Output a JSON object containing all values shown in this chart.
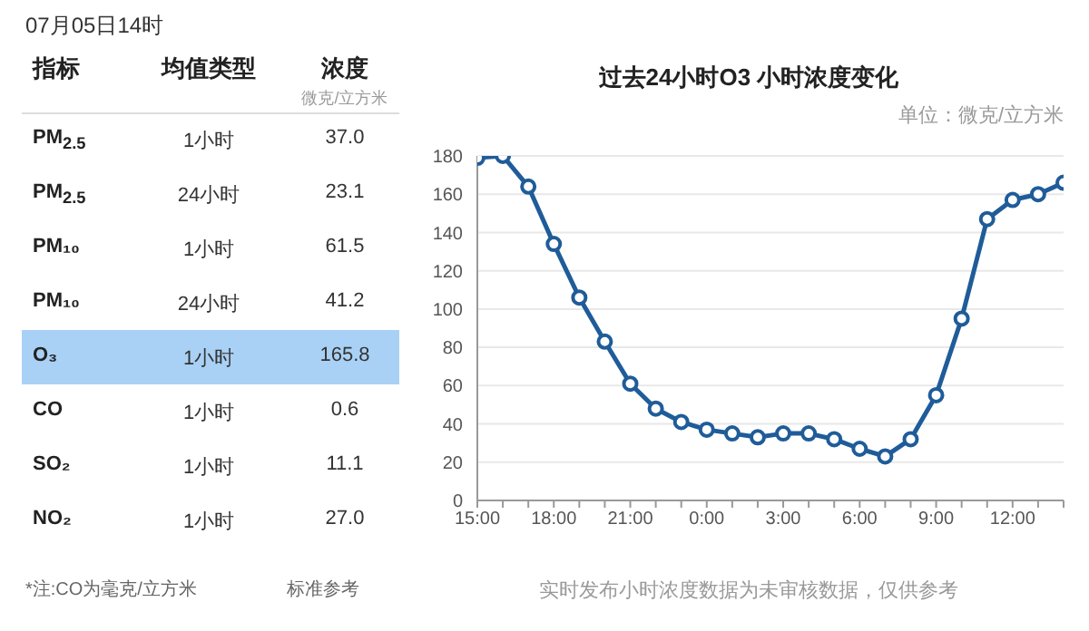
{
  "chart_data": [
    {
      "type": "other",
      "title": "07月05日14时",
      "categories": [
        "PM$_{2.5}$",
        "PM$_{2.5}$",
        "PM₁₀",
        "PM₁₀",
        "O₃",
        "CO",
        "SO₂",
        "NO₂"
      ],
      "y2_categories": [
        "1小时",
        "24小时",
        "1小时",
        "24小时",
        "1小时",
        "1小时",
        "1小时",
        "1小时"
      ],
      "value_labels": [
        "37.0",
        "23.1",
        "61.5",
        "41.2",
        "165.8",
        "0.6",
        "11.1",
        "27.0"
      ],
      "colors": [
        null,
        null,
        null,
        null,
        "#a9d1f5",
        null,
        null,
        null
      ],
      "annotations": [
        "指标",
        "均值类型",
        "浓度",
        "微克/立方米",
        "*注:CO为毫克/立方米",
        "标准参考"
      ]
    },
    {
      "type": "line",
      "title": "过去24小时O3 小时浓度变化",
      "ylabel": "单位：微克/立方米",
      "categories": [
        "15:00",
        null,
        null,
        "18:00",
        null,
        null,
        "21:00",
        null,
        null,
        "0:00",
        null,
        null,
        "3:00",
        null,
        null,
        "6:00",
        null,
        null,
        "9:00",
        null,
        null,
        "12:00",
        null,
        null
      ],
      "values": [
        179,
        180,
        164,
        134,
        106,
        83,
        61,
        48,
        41,
        37,
        35,
        33,
        35,
        35,
        32,
        27,
        23,
        32,
        55,
        95,
        147,
        157,
        160,
        166
      ],
      "color": "#1f5c99",
      "ylim": [
        0,
        180
      ],
      "yticks": [
        0,
        20,
        40,
        60,
        80,
        100,
        120,
        140,
        160,
        180
      ],
      "grid": "y",
      "marker": "circle",
      "annotations": [
        "实时发布小时浓度数据为未审核数据，仅供参考"
      ]
    }
  ]
}
